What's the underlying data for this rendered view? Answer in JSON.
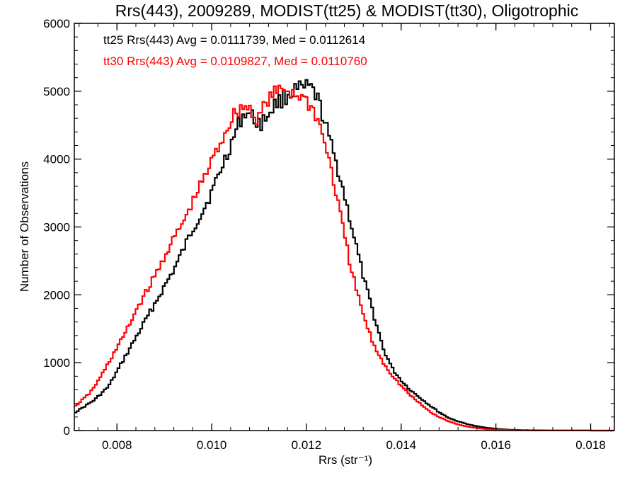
{
  "chart_data": {
    "type": "line",
    "title": "Rrs(443), 2009289, MODIST(tt25) & MODIST(tt30), Oligotrophic",
    "xlabel": "Rrs (str⁻¹)",
    "ylabel": "Number of Observations",
    "xlim": [
      0.0071,
      0.0185
    ],
    "ylim": [
      0,
      6000
    ],
    "x_ticks": [
      0.008,
      0.01,
      0.012,
      0.014,
      0.016,
      0.018
    ],
    "x_tick_labels": [
      "0.008",
      "0.010",
      "0.012",
      "0.014",
      "0.016",
      "0.018"
    ],
    "y_ticks": [
      0,
      1000,
      2000,
      3000,
      4000,
      5000,
      6000
    ],
    "y_tick_labels": [
      "0",
      "1000",
      "2000",
      "3000",
      "4000",
      "5000",
      "6000"
    ],
    "grid": false,
    "legend_position": "top-left",
    "annotations": [
      {
        "text": "tt25 Rrs(443) Avg = 0.0111739, Med = 0.0112614",
        "color": "#000000"
      },
      {
        "text": "tt30 Rrs(443) Avg = 0.0109827, Med = 0.0110760",
        "color": "#ff0000"
      }
    ],
    "series": [
      {
        "color": "#000000",
        "x": [
          0.0071,
          0.0075,
          0.0078,
          0.008,
          0.0082,
          0.0084,
          0.0086,
          0.0088,
          0.009,
          0.0092,
          0.0094,
          0.0096,
          0.0098,
          0.01,
          0.0102,
          0.0104,
          0.0106,
          0.0107,
          0.0108,
          0.0109,
          0.011,
          0.0111,
          0.0112,
          0.0113,
          0.0114,
          0.0115,
          0.0116,
          0.0117,
          0.0118,
          0.0119,
          0.012,
          0.0121,
          0.0122,
          0.0123,
          0.0124,
          0.0125,
          0.0126,
          0.0127,
          0.0128,
          0.0129,
          0.013,
          0.0131,
          0.0132,
          0.0133,
          0.0134,
          0.0135,
          0.0136,
          0.0138,
          0.014,
          0.0142,
          0.0144,
          0.0146,
          0.0148,
          0.015,
          0.0152,
          0.0154,
          0.0156,
          0.0158,
          0.016,
          0.0162,
          0.0164,
          0.0166,
          0.017,
          0.0175,
          0.0185
        ],
        "values": [
          270,
          450,
          650,
          900,
          1150,
          1400,
          1650,
          1900,
          2150,
          2400,
          2700,
          3000,
          3250,
          3550,
          3900,
          4250,
          4600,
          4700,
          4650,
          4560,
          4520,
          4580,
          4700,
          4800,
          4850,
          4900,
          4950,
          5000,
          5020,
          5030,
          5050,
          5020,
          4900,
          4700,
          4450,
          4200,
          3950,
          3700,
          3400,
          3100,
          2800,
          2500,
          2200,
          1950,
          1700,
          1450,
          1200,
          900,
          720,
          580,
          470,
          360,
          260,
          180,
          130,
          90,
          60,
          40,
          25,
          15,
          10,
          6,
          3,
          1,
          0
        ]
      },
      {
        "color": "#ff0000",
        "x": [
          0.0071,
          0.0074,
          0.0076,
          0.0078,
          0.008,
          0.0082,
          0.0084,
          0.0086,
          0.0088,
          0.009,
          0.0092,
          0.0094,
          0.0096,
          0.0098,
          0.01,
          0.0102,
          0.0104,
          0.0105,
          0.0106,
          0.0107,
          0.0108,
          0.0109,
          0.011,
          0.0111,
          0.0112,
          0.0113,
          0.0114,
          0.0115,
          0.0116,
          0.0117,
          0.0118,
          0.0119,
          0.012,
          0.0121,
          0.0122,
          0.0123,
          0.0124,
          0.0125,
          0.0126,
          0.0127,
          0.0128,
          0.0129,
          0.013,
          0.0131,
          0.0132,
          0.0133,
          0.0134,
          0.0136,
          0.0138,
          0.014,
          0.0142,
          0.0144,
          0.0146,
          0.0148,
          0.015,
          0.0152,
          0.0154,
          0.0156,
          0.0158,
          0.016,
          0.0162,
          0.0164,
          0.0168,
          0.0175,
          0.0185
        ],
        "values": [
          360,
          550,
          750,
          1000,
          1250,
          1500,
          1800,
          2050,
          2300,
          2600,
          2850,
          3100,
          3400,
          3700,
          4000,
          4300,
          4600,
          4700,
          4750,
          4780,
          4720,
          4600,
          4650,
          4800,
          4900,
          4950,
          5000,
          5050,
          5000,
          4980,
          4950,
          4900,
          4850,
          4750,
          4600,
          4400,
          4150,
          3850,
          3500,
          3150,
          2800,
          2450,
          2150,
          1900,
          1650,
          1450,
          1250,
          1000,
          800,
          640,
          500,
          380,
          270,
          190,
          130,
          85,
          55,
          35,
          20,
          12,
          8,
          5,
          2,
          1,
          0
        ]
      }
    ]
  }
}
